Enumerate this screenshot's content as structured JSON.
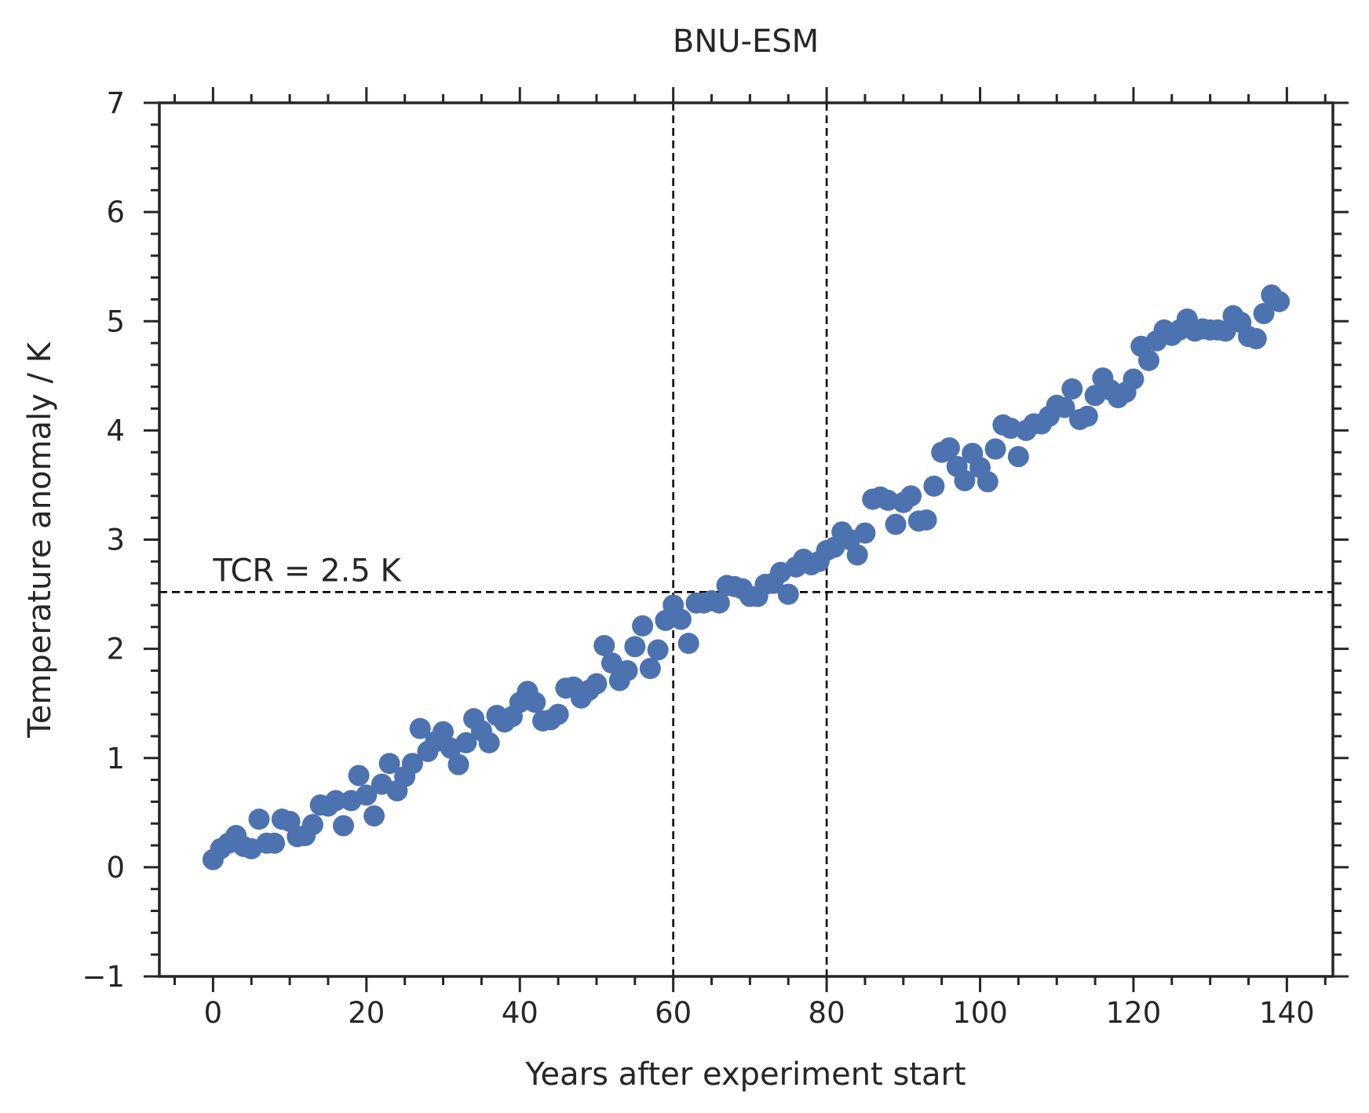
{
  "chart_data": {
    "type": "scatter",
    "title": "BNU-ESM",
    "xlabel": "Years after experiment start",
    "ylabel": "Temperature anomaly / K",
    "xlim": [
      -7,
      146
    ],
    "ylim": [
      -1,
      7
    ],
    "xticks": [
      0,
      20,
      40,
      60,
      80,
      100,
      120,
      140
    ],
    "xtick_labels": [
      "0",
      "20",
      "40",
      "60",
      "80",
      "100",
      "120",
      "140"
    ],
    "yticks": [
      -1,
      0,
      1,
      2,
      3,
      4,
      5,
      6,
      7
    ],
    "ytick_labels": [
      "−1",
      "0",
      "1",
      "2",
      "3",
      "4",
      "5",
      "6",
      "7"
    ],
    "x_minor_step": 5,
    "y_minor_step": 0.2,
    "grid": false,
    "marker_color": "#4C72B0",
    "reference_lines": {
      "vertical_x": [
        60,
        80
      ],
      "horizontal_y": 2.52
    },
    "annotation": "TCR = 2.5 K",
    "series": [
      {
        "x": [
          0,
          1,
          2,
          3,
          4,
          5,
          6,
          7,
          8,
          9,
          10,
          11,
          12,
          13,
          14,
          15,
          16,
          17,
          18,
          19,
          20,
          21,
          22,
          23,
          24,
          25,
          26,
          27,
          28,
          29,
          30,
          31,
          32,
          33,
          34,
          35,
          36,
          37,
          38,
          39,
          40,
          41,
          42,
          43,
          44,
          45,
          46,
          47,
          48,
          49,
          50,
          51,
          52,
          53,
          54,
          55,
          56,
          57,
          58,
          59,
          60,
          61,
          62,
          63,
          64,
          65,
          66,
          67,
          68,
          69,
          70,
          71,
          72,
          73,
          74,
          75,
          76,
          77,
          78,
          79,
          80,
          81,
          82,
          83,
          84,
          85,
          86,
          87,
          88,
          89,
          90,
          91,
          92,
          93,
          94,
          95,
          96,
          97,
          98,
          99,
          100,
          101,
          102,
          103,
          104,
          105,
          106,
          107,
          108,
          109,
          110,
          111,
          112,
          113,
          114,
          115,
          116,
          117,
          118,
          119,
          120,
          121,
          122,
          123,
          124,
          125,
          126,
          127,
          128,
          129,
          130,
          131,
          132,
          133,
          134,
          135,
          136,
          137,
          138,
          139
        ],
        "y": [
          0.07,
          0.17,
          0.22,
          0.29,
          0.19,
          0.17,
          0.44,
          0.22,
          0.22,
          0.44,
          0.42,
          0.28,
          0.29,
          0.39,
          0.57,
          0.56,
          0.61,
          0.38,
          0.61,
          0.84,
          0.66,
          0.47,
          0.76,
          0.95,
          0.7,
          0.83,
          0.95,
          1.27,
          1.06,
          1.15,
          1.24,
          1.09,
          0.94,
          1.14,
          1.36,
          1.25,
          1.14,
          1.39,
          1.33,
          1.38,
          1.51,
          1.61,
          1.51,
          1.34,
          1.35,
          1.4,
          1.64,
          1.65,
          1.55,
          1.62,
          1.68,
          2.03,
          1.87,
          1.71,
          1.8,
          2.02,
          2.21,
          1.82,
          1.99,
          2.26,
          2.4,
          2.27,
          2.05,
          2.42,
          2.42,
          2.44,
          2.42,
          2.58,
          2.57,
          2.55,
          2.48,
          2.48,
          2.59,
          2.6,
          2.7,
          2.5,
          2.75,
          2.82,
          2.77,
          2.8,
          2.9,
          2.93,
          3.07,
          3.0,
          2.86,
          3.06,
          3.37,
          3.39,
          3.36,
          3.14,
          3.34,
          3.4,
          3.17,
          3.18,
          3.49,
          3.8,
          3.84,
          3.67,
          3.54,
          3.79,
          3.66,
          3.53,
          3.83,
          4.05,
          4.02,
          3.76,
          4.0,
          4.06,
          4.06,
          4.13,
          4.23,
          4.21,
          4.38,
          4.1,
          4.13,
          4.32,
          4.48,
          4.37,
          4.3,
          4.35,
          4.47,
          4.77,
          4.64,
          4.82,
          4.92,
          4.87,
          4.92,
          5.02,
          4.91,
          4.93,
          4.92,
          4.92,
          4.91,
          5.05,
          4.99,
          4.86,
          4.84,
          5.07,
          5.24,
          5.18
        ]
      }
    ]
  }
}
